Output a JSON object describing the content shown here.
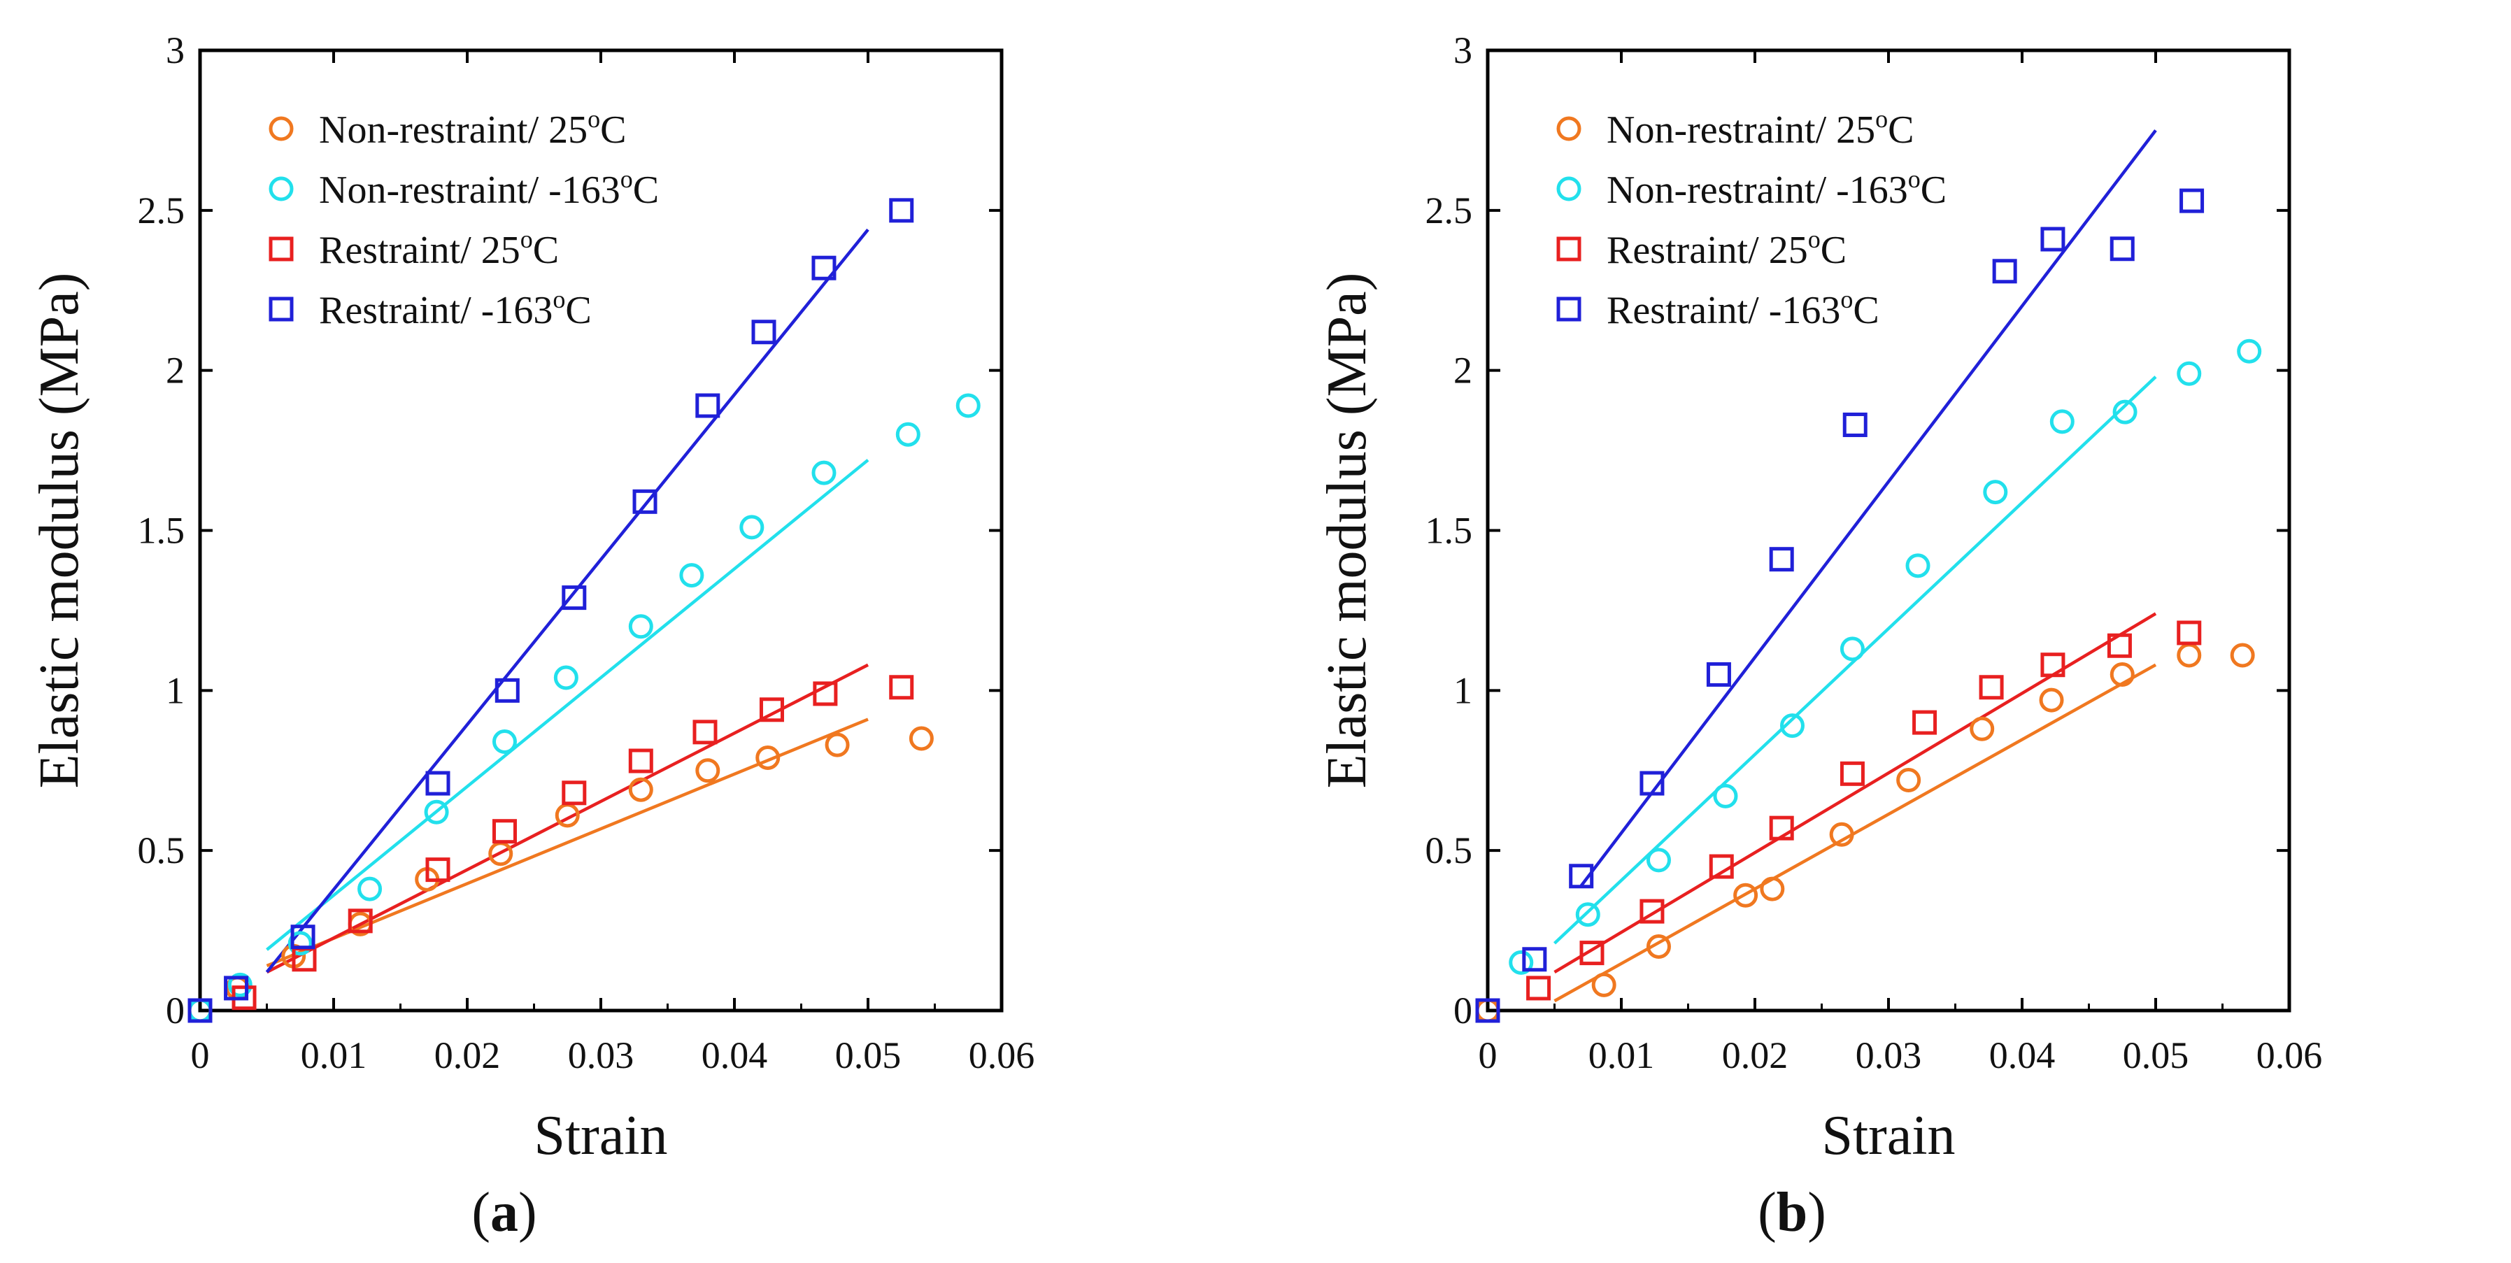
{
  "chart_data": [
    {
      "type": "scatter",
      "panel_label": "a",
      "xlabel": "Strain",
      "ylabel": "Elastic modulus (MPa)",
      "xlim": [
        0,
        0.06
      ],
      "ylim": [
        0,
        3
      ],
      "xticks": [
        "0",
        "0.01",
        "0.02",
        "0.03",
        "0.04",
        "0.05",
        "0.06"
      ],
      "yticks": [
        "0",
        "0.5",
        "1",
        "1.5",
        "2",
        "2.5",
        "3"
      ],
      "legend_position": "top-left",
      "series": [
        {
          "name": "Non-restraint/ 25°C",
          "label_main": "Non-restraint/ 25",
          "label_sup": "o",
          "label_unit": "C",
          "color": "#f07820",
          "marker": "circle",
          "x": [
            0,
            0.0028,
            0.007,
            0.012,
            0.017,
            0.0225,
            0.0275,
            0.033,
            0.038,
            0.0425,
            0.0477,
            0.054
          ],
          "y": [
            0,
            0.07,
            0.17,
            0.27,
            0.41,
            0.49,
            0.61,
            0.69,
            0.75,
            0.79,
            0.83,
            0.85
          ],
          "fit": {
            "x": [
              0.005,
              0.05
            ],
            "y": [
              0.14,
              0.91
            ]
          }
        },
        {
          "name": "Non-restraint/ -163°C",
          "label_main": "Non-restraint/ -163",
          "label_sup": "o",
          "label_unit": "C",
          "color": "#22e0ec",
          "marker": "circle",
          "x": [
            0,
            0.003,
            0.0075,
            0.0127,
            0.0177,
            0.0228,
            0.0274,
            0.033,
            0.0368,
            0.0413,
            0.0467,
            0.053,
            0.0575
          ],
          "y": [
            0,
            0.08,
            0.21,
            0.38,
            0.62,
            0.84,
            1.04,
            1.2,
            1.36,
            1.51,
            1.68,
            1.8,
            1.89
          ],
          "fit": {
            "x": [
              0.005,
              0.05
            ],
            "y": [
              0.19,
              1.72
            ]
          }
        },
        {
          "name": "Restraint/ 25°C",
          "label_main": "Restraint/ 25",
          "label_sup": "o",
          "label_unit": "C",
          "color": "#e82020",
          "marker": "square",
          "x": [
            0,
            0.0033,
            0.0078,
            0.012,
            0.0178,
            0.0228,
            0.028,
            0.033,
            0.0378,
            0.0428,
            0.0468,
            0.0525
          ],
          "y": [
            0,
            0.04,
            0.16,
            0.28,
            0.44,
            0.56,
            0.68,
            0.78,
            0.87,
            0.94,
            0.99,
            1.01
          ],
          "fit": {
            "x": [
              0.005,
              0.05
            ],
            "y": [
              0.12,
              1.08
            ]
          }
        },
        {
          "name": "Restraint/ -163°C",
          "label_main": "Restraint/ -163",
          "label_sup": "o",
          "label_unit": "C",
          "color": "#2020d8",
          "marker": "square",
          "x": [
            0,
            0.0027,
            0.0077,
            0.0178,
            0.023,
            0.028,
            0.0333,
            0.038,
            0.0422,
            0.0467,
            0.0525
          ],
          "y": [
            0,
            0.07,
            0.23,
            0.71,
            1.0,
            1.29,
            1.59,
            1.89,
            2.12,
            2.32,
            2.5
          ],
          "fit": {
            "x": [
              0.005,
              0.05
            ],
            "y": [
              0.12,
              2.44
            ]
          }
        }
      ]
    },
    {
      "type": "scatter",
      "panel_label": "b",
      "xlabel": "Strain",
      "ylabel": "Elastic modulus (MPa)",
      "xlim": [
        0,
        0.06
      ],
      "ylim": [
        0,
        3
      ],
      "xticks": [
        "0",
        "0.01",
        "0.02",
        "0.03",
        "0.04",
        "0.05",
        "0.06"
      ],
      "yticks": [
        "0",
        "0.5",
        "1",
        "1.5",
        "2",
        "2.5",
        "3"
      ],
      "legend_position": "top-left",
      "series": [
        {
          "name": "Non-restraint/ 25°C",
          "label_main": "Non-restraint/ 25",
          "label_sup": "o",
          "label_unit": "C",
          "color": "#f07820",
          "marker": "circle",
          "x": [
            0,
            0.0087,
            0.0128,
            0.0193,
            0.0213,
            0.0265,
            0.0315,
            0.037,
            0.0422,
            0.0475,
            0.0525,
            0.0565
          ],
          "y": [
            0,
            0.08,
            0.2,
            0.36,
            0.38,
            0.55,
            0.72,
            0.88,
            0.97,
            1.05,
            1.11,
            1.11
          ],
          "fit": {
            "x": [
              0.005,
              0.05
            ],
            "y": [
              0.03,
              1.08
            ]
          }
        },
        {
          "name": "Non-restraint/ -163°C",
          "label_main": "Non-restraint/ -163",
          "label_sup": "o",
          "label_unit": "C",
          "color": "#22e0ec",
          "marker": "circle",
          "x": [
            0.0025,
            0.0075,
            0.0128,
            0.0178,
            0.0228,
            0.0273,
            0.0322,
            0.038,
            0.043,
            0.0477,
            0.0525,
            0.057
          ],
          "y": [
            0.15,
            0.3,
            0.47,
            0.67,
            0.89,
            1.13,
            1.39,
            1.62,
            1.84,
            1.87,
            1.99,
            2.06
          ],
          "fit": {
            "x": [
              0.005,
              0.05
            ],
            "y": [
              0.21,
              1.98
            ]
          }
        },
        {
          "name": "Restraint/ 25°C",
          "label_main": "Restraint/ 25",
          "label_sup": "o",
          "label_unit": "C",
          "color": "#e82020",
          "marker": "square",
          "x": [
            0,
            0.0038,
            0.0078,
            0.0123,
            0.0175,
            0.022,
            0.0273,
            0.0327,
            0.0377,
            0.0423,
            0.0473,
            0.0525
          ],
          "y": [
            0,
            0.07,
            0.18,
            0.31,
            0.45,
            0.57,
            0.74,
            0.9,
            1.01,
            1.08,
            1.14,
            1.18
          ],
          "fit": {
            "x": [
              0.005,
              0.05
            ],
            "y": [
              0.12,
              1.24
            ]
          }
        },
        {
          "name": "Restraint/ -163°C",
          "label_main": "Restraint/ -163",
          "label_sup": "o",
          "label_unit": "C",
          "color": "#2020d8",
          "marker": "square",
          "x": [
            0,
            0.0035,
            0.007,
            0.0123,
            0.0173,
            0.022,
            0.0275,
            0.0387,
            0.0423,
            0.0475,
            0.0527
          ],
          "y": [
            0,
            0.16,
            0.42,
            0.71,
            1.05,
            1.41,
            1.83,
            2.31,
            2.41,
            2.38,
            2.53
          ],
          "fit": {
            "x": [
              0.007,
              0.05
            ],
            "y": [
              0.39,
              2.75
            ]
          }
        }
      ]
    }
  ]
}
